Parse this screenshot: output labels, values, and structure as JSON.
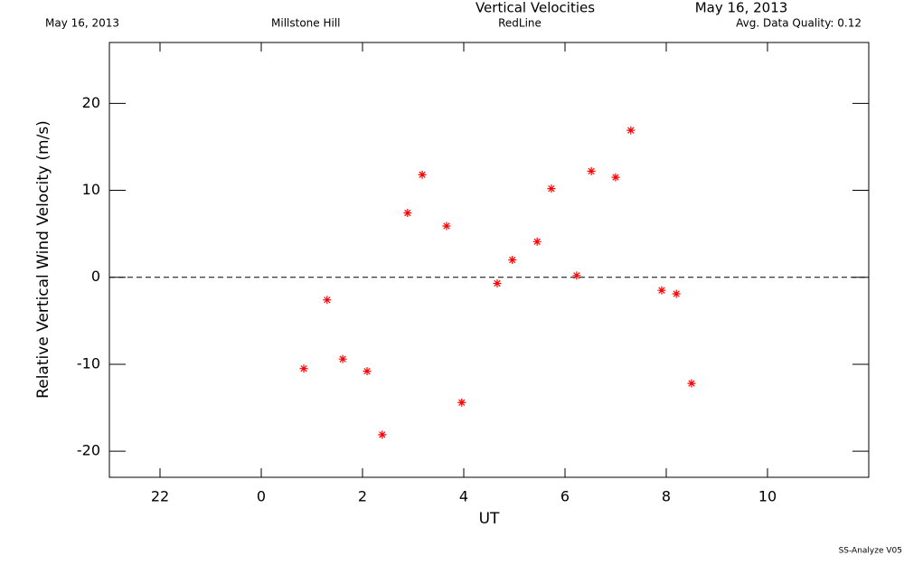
{
  "header": {
    "date_left": "May 16, 2013",
    "site": "Millstone Hill",
    "title": "Vertical Velocities",
    "filter": "RedLine",
    "date_right": "May 16, 2013",
    "quality": "Avg. Data Quality: 0.12"
  },
  "footer": "SS-Analyze V05",
  "chart_data": {
    "type": "scatter",
    "x_label": "UT",
    "y_label": "Relative Vertical Wind Velocity (m/s)",
    "series": [
      {
        "color": "#ff0000",
        "x": [
          0.84,
          1.3,
          1.61,
          2.09,
          2.39,
          2.89,
          3.18,
          3.66,
          3.96,
          4.66,
          4.96,
          5.45,
          5.73,
          6.23,
          6.52,
          7.0,
          7.3,
          7.91,
          8.2,
          8.5
        ],
        "values": [
          -10.5,
          -2.6,
          -9.4,
          -10.8,
          -18.1,
          7.4,
          11.8,
          5.9,
          -14.4,
          -0.7,
          2.0,
          4.1,
          10.2,
          0.2,
          12.2,
          11.5,
          16.9,
          -1.5,
          -1.9,
          -12.2
        ]
      }
    ],
    "xlim": [
      -3,
      12
    ],
    "xticks": [
      {
        "value": -2,
        "label": "22"
      },
      0,
      2,
      4,
      6,
      8,
      10
    ],
    "ylim": [
      -23,
      27
    ],
    "yticks": [
      -20,
      -10,
      0,
      10,
      20
    ],
    "reference_line": 0
  }
}
